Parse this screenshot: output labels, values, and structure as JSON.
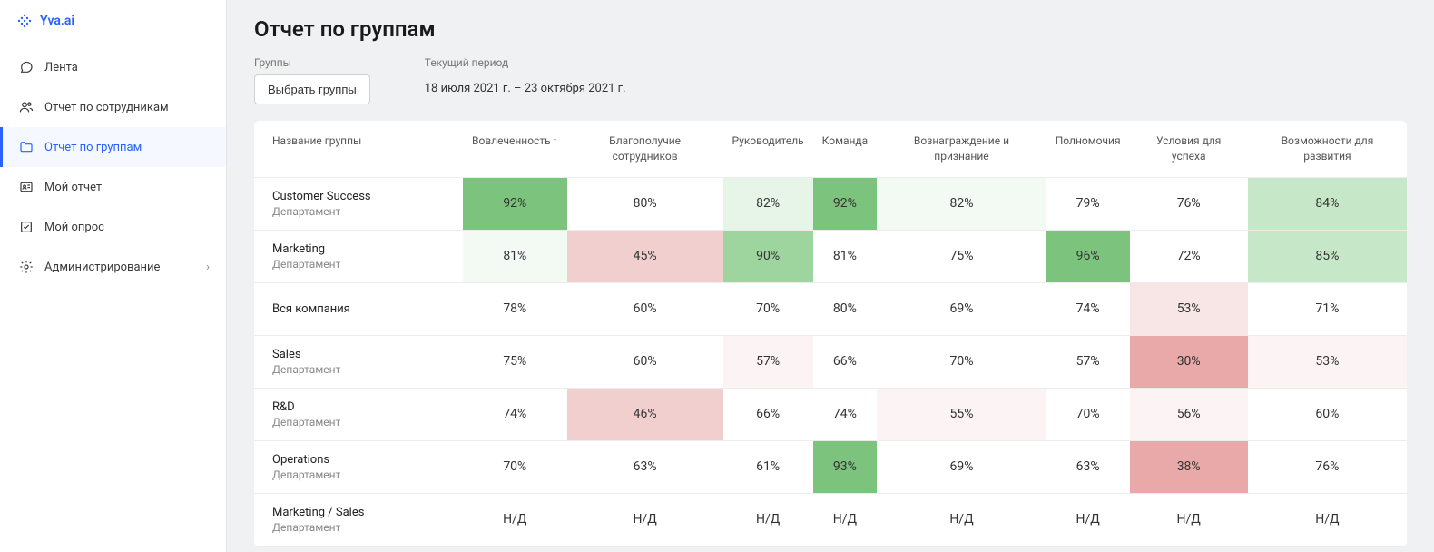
{
  "brand": {
    "name": "Yva.ai"
  },
  "nav": {
    "items": [
      {
        "label": "Лента"
      },
      {
        "label": "Отчет по сотрудникам"
      },
      {
        "label": "Отчет по группам"
      },
      {
        "label": "Мой отчет"
      },
      {
        "label": "Мой опрос"
      },
      {
        "label": "Администрирование"
      }
    ]
  },
  "page": {
    "title": "Отчет по группам",
    "filters": {
      "groups_label": "Группы",
      "groups_button": "Выбрать группы",
      "period_label": "Текущий период",
      "period_value": "18 июля 2021 г. – 23 октября 2021 г."
    }
  },
  "table": {
    "columns": [
      "Название группы",
      "Вовлеченность",
      "Благополучие сотрудников",
      "Руководитель",
      "Команда",
      "Вознаграждение и признание",
      "Полномочия",
      "Условия для успеха",
      "Возможности для развития"
    ],
    "sort_arrow": "↑",
    "heat_colors": {
      "green4": "#7cc47e",
      "green3": "#9ed59f",
      "green2": "#c7e8c8",
      "green1": "#e7f4e8",
      "green0": "#f3faf3",
      "white": "#ffffff",
      "red0": "#fcf4f4",
      "red1": "#f8e6e6",
      "red2": "#f1cfcf",
      "red3": "#e9a9a9"
    },
    "rows": [
      {
        "name": "Customer Success",
        "sub": "Департамент",
        "cells": [
          {
            "v": "92%",
            "c": "green4"
          },
          {
            "v": "80%",
            "c": "white"
          },
          {
            "v": "82%",
            "c": "green1"
          },
          {
            "v": "92%",
            "c": "green4"
          },
          {
            "v": "82%",
            "c": "green0"
          },
          {
            "v": "79%",
            "c": "white"
          },
          {
            "v": "76%",
            "c": "white"
          },
          {
            "v": "84%",
            "c": "green2"
          }
        ]
      },
      {
        "name": "Marketing",
        "sub": "Департамент",
        "cells": [
          {
            "v": "81%",
            "c": "green0"
          },
          {
            "v": "45%",
            "c": "red2"
          },
          {
            "v": "90%",
            "c": "green3"
          },
          {
            "v": "81%",
            "c": "white"
          },
          {
            "v": "75%",
            "c": "white"
          },
          {
            "v": "96%",
            "c": "green4"
          },
          {
            "v": "72%",
            "c": "white"
          },
          {
            "v": "85%",
            "c": "green2"
          }
        ]
      },
      {
        "name": "Вся компания",
        "sub": "",
        "cells": [
          {
            "v": "78%",
            "c": "white"
          },
          {
            "v": "60%",
            "c": "white"
          },
          {
            "v": "70%",
            "c": "white"
          },
          {
            "v": "80%",
            "c": "white"
          },
          {
            "v": "69%",
            "c": "white"
          },
          {
            "v": "74%",
            "c": "white"
          },
          {
            "v": "53%",
            "c": "red1"
          },
          {
            "v": "71%",
            "c": "white"
          }
        ]
      },
      {
        "name": "Sales",
        "sub": "Департамент",
        "cells": [
          {
            "v": "75%",
            "c": "white"
          },
          {
            "v": "60%",
            "c": "white"
          },
          {
            "v": "57%",
            "c": "red0"
          },
          {
            "v": "66%",
            "c": "white"
          },
          {
            "v": "70%",
            "c": "white"
          },
          {
            "v": "57%",
            "c": "white"
          },
          {
            "v": "30%",
            "c": "red3"
          },
          {
            "v": "53%",
            "c": "red0"
          }
        ]
      },
      {
        "name": "R&D",
        "sub": "Департамент",
        "cells": [
          {
            "v": "74%",
            "c": "white"
          },
          {
            "v": "46%",
            "c": "red2"
          },
          {
            "v": "66%",
            "c": "white"
          },
          {
            "v": "74%",
            "c": "white"
          },
          {
            "v": "55%",
            "c": "red0"
          },
          {
            "v": "70%",
            "c": "white"
          },
          {
            "v": "56%",
            "c": "red0"
          },
          {
            "v": "60%",
            "c": "white"
          }
        ]
      },
      {
        "name": "Operations",
        "sub": "Департамент",
        "cells": [
          {
            "v": "70%",
            "c": "white"
          },
          {
            "v": "63%",
            "c": "white"
          },
          {
            "v": "61%",
            "c": "white"
          },
          {
            "v": "93%",
            "c": "green4"
          },
          {
            "v": "69%",
            "c": "white"
          },
          {
            "v": "63%",
            "c": "white"
          },
          {
            "v": "38%",
            "c": "red3"
          },
          {
            "v": "76%",
            "c": "white"
          }
        ]
      },
      {
        "name": "Marketing / Sales",
        "sub": "Департамент",
        "cells": [
          {
            "v": "Н/Д",
            "c": "white"
          },
          {
            "v": "Н/Д",
            "c": "white"
          },
          {
            "v": "Н/Д",
            "c": "white"
          },
          {
            "v": "Н/Д",
            "c": "white"
          },
          {
            "v": "Н/Д",
            "c": "white"
          },
          {
            "v": "Н/Д",
            "c": "white"
          },
          {
            "v": "Н/Д",
            "c": "white"
          },
          {
            "v": "Н/Д",
            "c": "white"
          }
        ]
      }
    ]
  }
}
